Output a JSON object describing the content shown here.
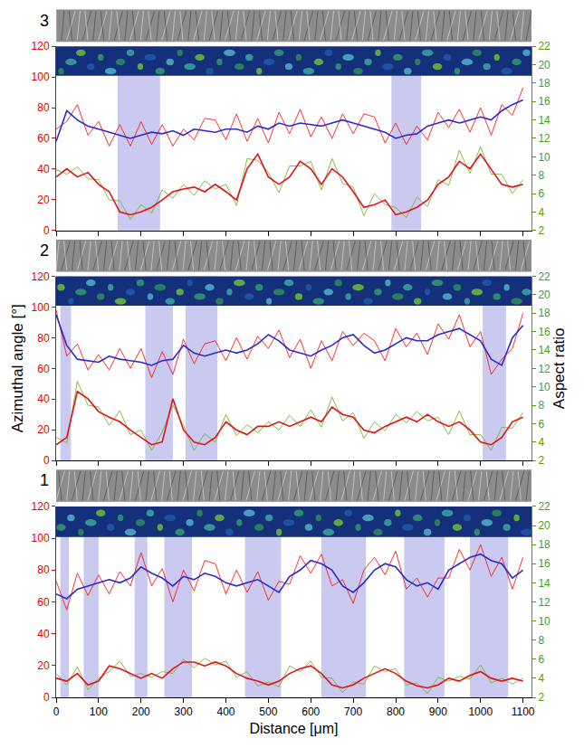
{
  "chart_data": [
    {
      "type": "line",
      "label": "3",
      "xlim": [
        0,
        1120
      ],
      "xticks": [
        0,
        100,
        200,
        300,
        400,
        500,
        600,
        700,
        800,
        900,
        1000,
        1100
      ],
      "ylim": [
        0,
        120
      ],
      "yticks": [
        0,
        20,
        40,
        60,
        80,
        100,
        120
      ],
      "y2lim": [
        2,
        22
      ],
      "y2ticks": [
        2,
        4,
        6,
        8,
        10,
        12,
        14,
        16,
        18,
        20,
        22
      ],
      "tick_labels": "y",
      "bands": [
        [
          145,
          245
        ],
        [
          790,
          860
        ]
      ],
      "x": [
        0,
        25,
        50,
        75,
        100,
        125,
        150,
        175,
        200,
        225,
        250,
        275,
        300,
        325,
        350,
        375,
        400,
        425,
        450,
        475,
        500,
        525,
        550,
        575,
        600,
        625,
        650,
        675,
        700,
        725,
        750,
        775,
        800,
        825,
        850,
        875,
        900,
        925,
        950,
        975,
        1000,
        1025,
        1050,
        1075,
        1100
      ],
      "series": [
        {
          "color": "#ff1a1a",
          "axis": "y",
          "values": [
            66,
            71,
            82,
            62,
            71,
            55,
            69,
            55,
            71,
            56,
            69,
            55,
            66,
            59,
            73,
            72,
            59,
            76,
            58,
            73,
            57,
            77,
            63,
            79,
            61,
            74,
            60,
            76,
            63,
            76,
            74,
            57,
            70,
            56,
            68,
            59,
            77,
            67,
            79,
            64,
            80,
            62,
            82,
            75,
            93
          ]
        },
        {
          "color": "#2a2ad0",
          "axis": "y",
          "values": [
            58,
            78,
            72,
            68,
            66,
            64,
            62,
            60,
            62,
            64,
            63,
            65,
            62,
            66,
            65,
            64,
            66,
            66,
            64,
            68,
            66,
            70,
            68,
            70,
            69,
            68,
            70,
            72,
            70,
            68,
            66,
            64,
            60,
            62,
            63,
            68,
            70,
            72,
            70,
            72,
            74,
            72,
            78,
            82,
            85
          ]
        },
        {
          "color": "#77b52a",
          "axis": "y2",
          "values": [
            8.6,
            8.1,
            8.9,
            7.6,
            7.5,
            5.3,
            5.2,
            3.2,
            4.8,
            3.9,
            6.4,
            5.5,
            7,
            5.8,
            7.4,
            6.5,
            7,
            4.7,
            9.8,
            9.6,
            8.3,
            6.1,
            9,
            9,
            9.5,
            6.4,
            9.8,
            7.1,
            6.7,
            3.6,
            6,
            4.8,
            4.5,
            3.4,
            5.6,
            4.6,
            7.5,
            6.9,
            10.7,
            8.2,
            11.1,
            8.1,
            8.1,
            6,
            7.5
          ]
        },
        {
          "color": "#e3121a",
          "axis": "y2",
          "values": [
            7.8,
            8.7,
            7.8,
            8.3,
            7,
            6.2,
            4,
            3.7,
            4,
            4.5,
            5.3,
            6.2,
            6.5,
            6.7,
            6.2,
            7,
            6.2,
            5.3,
            8.7,
            10.3,
            7.8,
            7,
            7.8,
            9.5,
            8.7,
            7,
            8.7,
            7.8,
            6.2,
            4.5,
            4.8,
            5.3,
            3.7,
            4,
            4.5,
            5.3,
            7,
            7.8,
            9.5,
            8.7,
            10.3,
            8.7,
            7,
            6.7,
            7
          ]
        }
      ]
    },
    {
      "type": "line",
      "label": "2",
      "y_label": "Azimuthal angle [°]",
      "y2_label": "Aspect ratio",
      "xlim": [
        0,
        1120
      ],
      "xticks": [
        0,
        100,
        200,
        300,
        400,
        500,
        600,
        700,
        800,
        900,
        1000,
        1100
      ],
      "ylim": [
        0,
        120
      ],
      "yticks": [
        0,
        20,
        40,
        60,
        80,
        100,
        120
      ],
      "y2lim": [
        2,
        22
      ],
      "y2ticks": [
        2,
        4,
        6,
        8,
        10,
        12,
        14,
        16,
        18,
        20,
        22
      ],
      "tick_labels": "y",
      "bands": [
        [
          10,
          35
        ],
        [
          210,
          275
        ],
        [
          305,
          380
        ],
        [
          1005,
          1060
        ]
      ],
      "x": [
        0,
        25,
        50,
        75,
        100,
        125,
        150,
        175,
        200,
        225,
        250,
        275,
        300,
        325,
        350,
        375,
        400,
        425,
        450,
        475,
        500,
        525,
        550,
        575,
        600,
        625,
        650,
        675,
        700,
        725,
        750,
        775,
        800,
        825,
        850,
        875,
        900,
        925,
        950,
        975,
        1000,
        1025,
        1050,
        1075,
        1100
      ],
      "series": [
        {
          "color": "#ff1a1a",
          "axis": "y",
          "values": [
            98,
            68,
            76,
            59,
            69,
            59,
            73,
            60,
            73,
            54,
            71,
            56,
            79,
            63,
            76,
            78,
            65,
            80,
            66,
            81,
            73,
            85,
            67,
            79,
            60,
            78,
            65,
            84,
            75,
            83,
            78,
            65,
            86,
            74,
            83,
            69,
            89,
            79,
            95,
            74,
            84,
            56,
            66,
            73,
            96
          ]
        },
        {
          "color": "#2a2ad0",
          "axis": "y",
          "values": [
            95,
            75,
            66,
            65,
            64,
            68,
            66,
            65,
            64,
            62,
            65,
            66,
            75,
            70,
            68,
            70,
            72,
            70,
            72,
            76,
            82,
            78,
            72,
            70,
            68,
            72,
            75,
            80,
            82,
            75,
            70,
            72,
            76,
            80,
            78,
            78,
            82,
            84,
            86,
            82,
            78,
            66,
            62,
            80,
            88
          ]
        },
        {
          "color": "#77b52a",
          "axis": "y2",
          "values": [
            4.5,
            3.9,
            10.6,
            8,
            7.8,
            5.8,
            7.4,
            4.8,
            5.3,
            3.1,
            5.1,
            8,
            5.8,
            3.1,
            4.9,
            4,
            7,
            4.7,
            5.9,
            5,
            6.2,
            5.3,
            6.9,
            5.7,
            7.5,
            5.6,
            8.9,
            6.3,
            7.2,
            4.4,
            6.2,
            5.2,
            7,
            6.1,
            7.3,
            6.3,
            6.7,
            4.8,
            7.4,
            4.8,
            4.8,
            3.1,
            5.6,
            5.5,
            7.2
          ]
        },
        {
          "color": "#e3121a",
          "axis": "y2",
          "values": [
            3.7,
            4.5,
            9.5,
            8.7,
            7.3,
            6.7,
            6.2,
            5.3,
            4.5,
            3.7,
            4,
            8.7,
            5.3,
            4,
            3.7,
            4.5,
            6.2,
            5.3,
            4.8,
            5.7,
            5.7,
            6.2,
            5.7,
            6.2,
            6.7,
            6.2,
            7.8,
            7,
            6.7,
            5.3,
            5,
            5.7,
            6.2,
            6.7,
            6.2,
            7,
            6.2,
            5.7,
            6.2,
            5.3,
            4,
            3.7,
            4.5,
            6.2,
            6.7
          ]
        }
      ]
    },
    {
      "type": "line",
      "label": "1",
      "x_label": "Distance [μm]",
      "xlim": [
        0,
        1120
      ],
      "xticks": [
        0,
        100,
        200,
        300,
        400,
        500,
        600,
        700,
        800,
        900,
        1000,
        1100
      ],
      "ylim": [
        0,
        120
      ],
      "yticks": [
        0,
        20,
        40,
        60,
        80,
        100,
        120
      ],
      "y2lim": [
        2,
        22
      ],
      "y2ticks": [
        2,
        4,
        6,
        8,
        10,
        12,
        14,
        16,
        18,
        20,
        22
      ],
      "bands": [
        [
          10,
          30
        ],
        [
          65,
          100
        ],
        [
          185,
          215
        ],
        [
          255,
          320
        ],
        [
          445,
          530
        ],
        [
          625,
          730
        ],
        [
          820,
          915
        ],
        [
          975,
          1065
        ]
      ],
      "x": [
        0,
        25,
        50,
        75,
        100,
        125,
        150,
        175,
        200,
        225,
        250,
        275,
        300,
        325,
        350,
        375,
        400,
        425,
        450,
        475,
        500,
        525,
        550,
        575,
        600,
        625,
        650,
        675,
        700,
        725,
        750,
        775,
        800,
        825,
        850,
        875,
        900,
        925,
        950,
        975,
        1000,
        1025,
        1050,
        1075,
        1100
      ],
      "series": [
        {
          "color": "#ff1a1a",
          "axis": "y",
          "values": [
            73,
            55,
            78,
            64,
            77,
            65,
            79,
            70,
            91,
            70,
            81,
            60,
            80,
            67,
            86,
            84,
            65,
            80,
            66,
            79,
            61,
            73,
            71,
            89,
            78,
            90,
            70,
            74,
            59,
            80,
            88,
            77,
            92,
            68,
            75,
            63,
            75,
            75,
            93,
            80,
            96,
            76,
            88,
            68,
            88
          ]
        },
        {
          "color": "#2a2ad0",
          "axis": "y",
          "values": [
            65,
            62,
            68,
            70,
            72,
            74,
            72,
            75,
            82,
            78,
            75,
            70,
            76,
            74,
            78,
            76,
            72,
            70,
            72,
            74,
            70,
            66,
            76,
            80,
            86,
            84,
            80,
            70,
            66,
            72,
            80,
            84,
            82,
            74,
            70,
            72,
            68,
            80,
            84,
            88,
            90,
            86,
            84,
            75,
            80
          ]
        },
        {
          "color": "#77b52a",
          "axis": "y2",
          "values": [
            4.5,
            3.3,
            5.2,
            2.8,
            4,
            4.7,
            5.8,
            4.2,
            4.5,
            4.1,
            4.7,
            4.5,
            6,
            5.1,
            6.1,
            5.4,
            5.8,
            4.1,
            4.7,
            3.2,
            3.6,
            3.1,
            5.3,
            4.7,
            5.8,
            4.1,
            4,
            2.5,
            3.6,
            3.4,
            5.3,
            4.7,
            5,
            3.3,
            3.5,
            2.4,
            4.1,
            3.7,
            4.2,
            3.9,
            5.4,
            3.5,
            4,
            3.4,
            4
          ]
        },
        {
          "color": "#e3121a",
          "axis": "y2",
          "values": [
            4,
            3.7,
            4.5,
            3.3,
            3.7,
            5.3,
            5,
            4.5,
            4,
            4.5,
            4,
            5,
            5.7,
            5.7,
            5.3,
            5.7,
            5.3,
            4.5,
            4,
            3.7,
            3.3,
            3.7,
            4.5,
            5,
            5.3,
            4.5,
            3.3,
            3,
            3.3,
            4,
            4.5,
            5,
            4.5,
            3.7,
            3.2,
            3,
            3.3,
            4,
            3.7,
            4.3,
            4.7,
            4,
            3.7,
            4,
            3.7
          ]
        }
      ]
    }
  ]
}
